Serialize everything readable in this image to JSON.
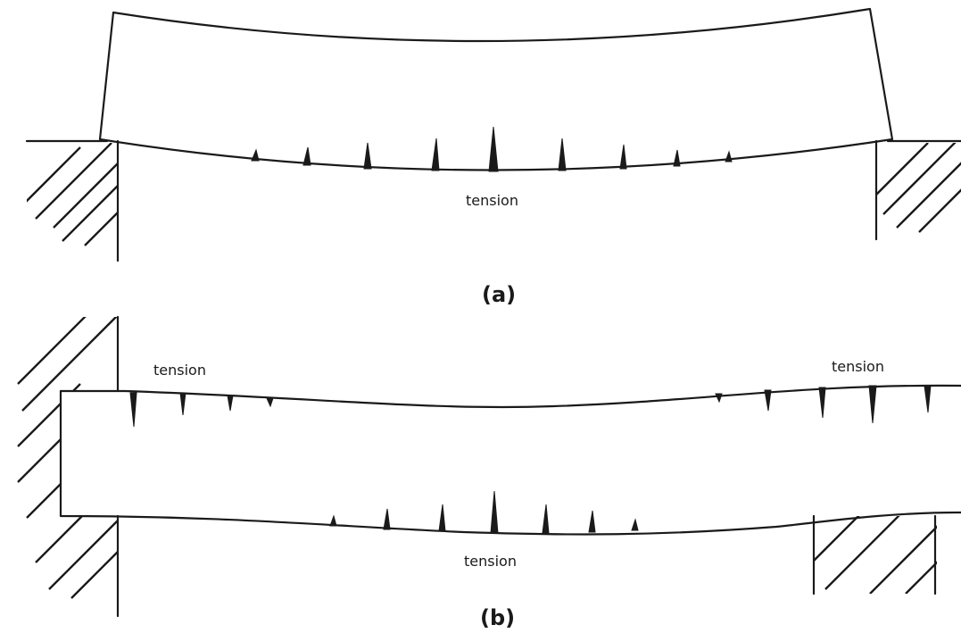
{
  "figure": {
    "panel_a": {
      "caption": "(a)",
      "labels": [
        "tension"
      ]
    },
    "panel_b": {
      "caption": "(b)",
      "labels": [
        "tension",
        "tension",
        "tension"
      ]
    }
  }
}
